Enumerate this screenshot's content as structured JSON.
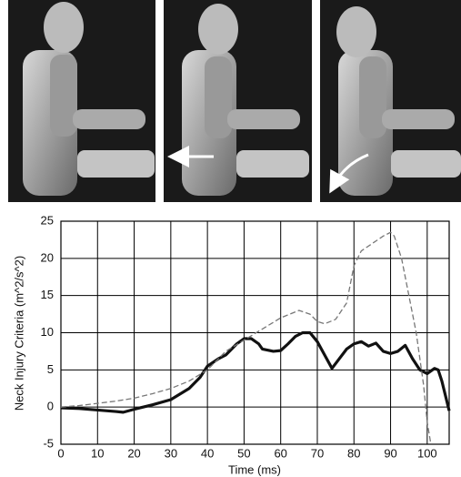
{
  "chart_data": {
    "type": "line",
    "xlabel": "Time (ms)",
    "ylabel": "Neck Injury Criteria (m^2/s^2)",
    "xlim": [
      0,
      106
    ],
    "xticks": [
      0,
      10,
      20,
      30,
      40,
      50,
      60,
      70,
      80,
      90,
      100
    ],
    "ylim": [
      -5,
      25
    ],
    "yticks": [
      -5,
      0,
      5,
      10,
      15,
      20,
      25
    ],
    "grid": true,
    "series": [
      {
        "color": "#111111",
        "style": "solid",
        "x": [
          0,
          5,
          10,
          15,
          17,
          20,
          25,
          30,
          35,
          38,
          40,
          43,
          45,
          48,
          50,
          52,
          54,
          55,
          58,
          60,
          62,
          64,
          66,
          68,
          70,
          72,
          74,
          76,
          78,
          80,
          82,
          84,
          86,
          88,
          90,
          92,
          94,
          96,
          98,
          100,
          102,
          103,
          104,
          105,
          106
        ],
        "values": [
          -0.1,
          -0.2,
          -0.4,
          -0.6,
          -0.7,
          -0.3,
          0.3,
          1,
          2.5,
          4,
          5.5,
          6.5,
          7,
          8.5,
          9.2,
          9.2,
          8.5,
          7.8,
          7.5,
          7.6,
          8.5,
          9.5,
          10,
          10,
          8.8,
          7,
          5.2,
          6.5,
          7.8,
          8.5,
          8.8,
          8.2,
          8.6,
          7.5,
          7.2,
          7.5,
          8.3,
          6.5,
          5,
          4.5,
          5.2,
          5,
          3.5,
          1.5,
          -0.5
        ]
      },
      {
        "color": "#777777",
        "style": "dashed",
        "x": [
          0,
          5,
          10,
          15,
          20,
          25,
          30,
          35,
          40,
          45,
          50,
          55,
          60,
          65,
          68,
          70,
          72,
          75,
          78,
          80,
          82,
          85,
          88,
          90,
          91,
          93,
          95,
          97,
          99,
          100,
          101
        ],
        "values": [
          0,
          0.2,
          0.5,
          0.8,
          1.2,
          1.8,
          2.5,
          3.5,
          5,
          7.5,
          9,
          10.5,
          12,
          13,
          12.5,
          11.5,
          11.2,
          11.8,
          14,
          19,
          21,
          22,
          23,
          23.5,
          23,
          20,
          15,
          10,
          3,
          -2,
          -5
        ]
      }
    ]
  }
}
